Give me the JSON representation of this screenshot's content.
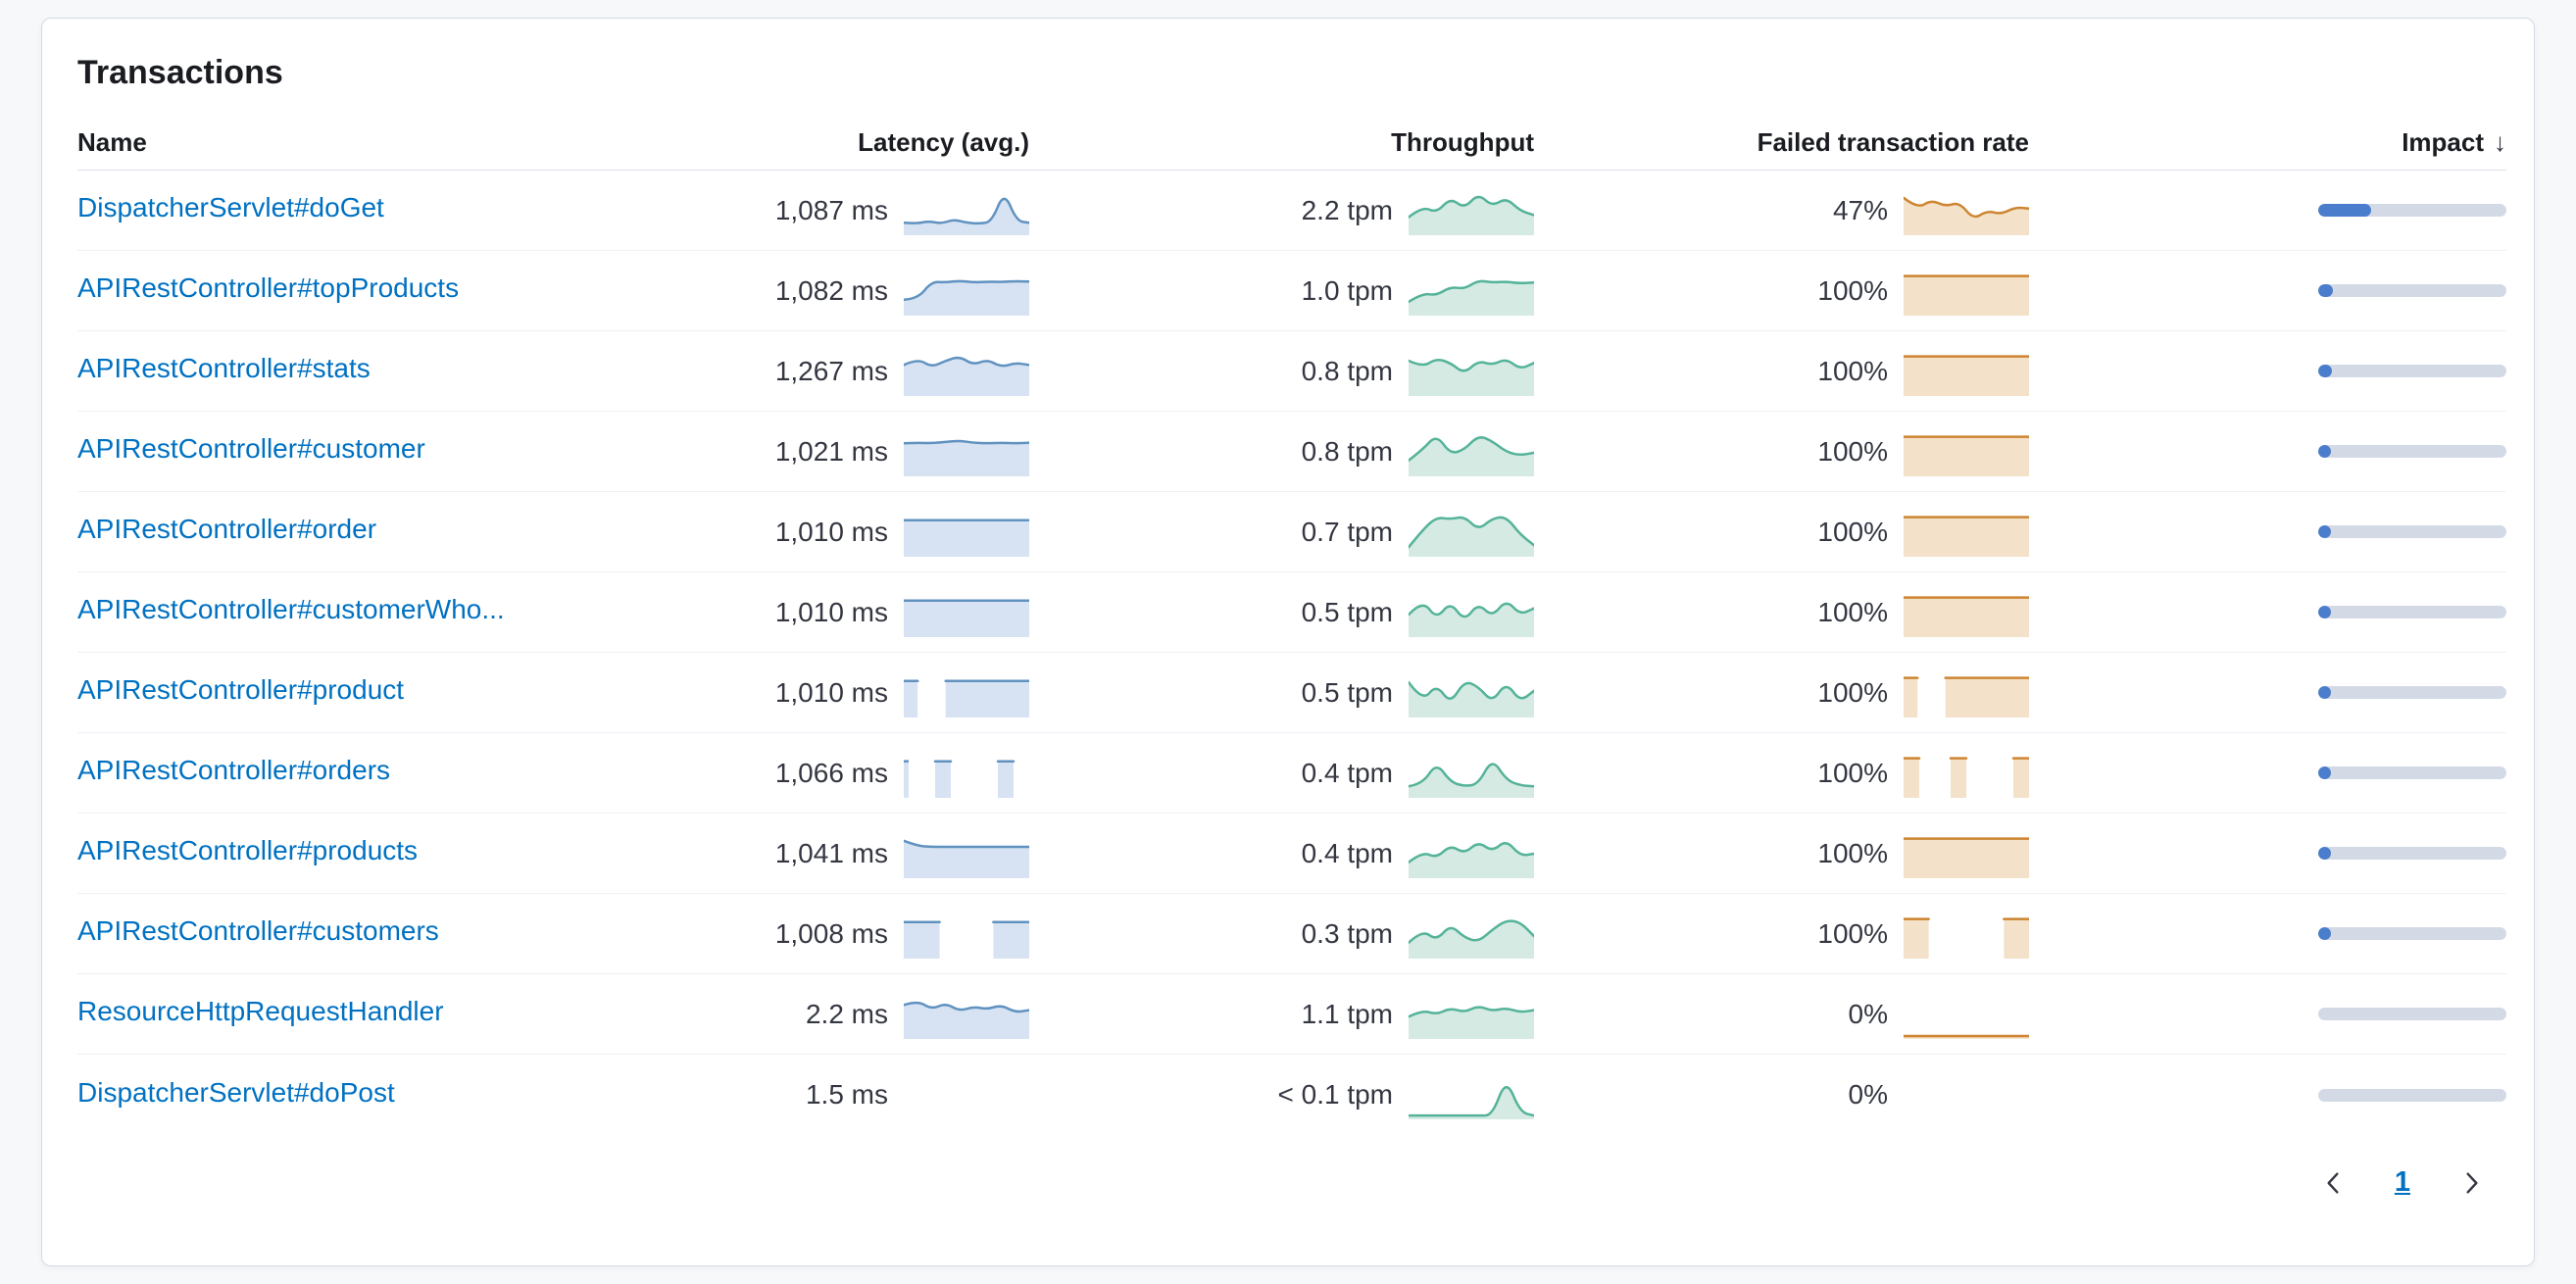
{
  "panel": {
    "title": "Transactions"
  },
  "table": {
    "columns": [
      "Name",
      "Latency (avg.)",
      "Throughput",
      "Failed transaction rate",
      "Impact"
    ],
    "sort_icon": "↓",
    "rows": [
      {
        "name": "DispatcherServlet#doGet",
        "latency": "1,087 ms",
        "throughput": "2.2 tpm",
        "failed_rate": "47%",
        "impact": 0.28,
        "spark_latency": [
          0.22,
          0.2,
          0.26,
          0.2,
          0.3,
          0.22,
          0.2,
          0.24,
          0.95,
          0.26,
          0.22
        ],
        "spark_throughput": [
          0.35,
          0.6,
          0.45,
          0.8,
          0.55,
          0.9,
          0.6,
          0.8,
          0.5,
          0.4
        ],
        "spark_failed": [
          0.8,
          0.55,
          0.75,
          0.6,
          0.7,
          0.3,
          0.5,
          0.42,
          0.58,
          0.55
        ]
      },
      {
        "name": "APIRestController#topProducts",
        "latency": "1,082 ms",
        "throughput": "1.0 tpm",
        "failed_rate": "100%",
        "impact": 0.08,
        "spark_latency": [
          0.3,
          0.32,
          0.72,
          0.7,
          0.74,
          0.7,
          0.72,
          0.71,
          0.73,
          0.72
        ],
        "spark_throughput": [
          0.25,
          0.45,
          0.4,
          0.6,
          0.55,
          0.75,
          0.7,
          0.72,
          0.68,
          0.7
        ],
        "spark_failed": [
          0.85,
          0.85,
          0.85,
          0.85,
          0.85,
          0.85,
          0.85,
          0.85,
          0.85,
          0.85
        ]
      },
      {
        "name": "APIRestController#stats",
        "latency": "1,267 ms",
        "throughput": "0.8 tpm",
        "failed_rate": "100%",
        "impact": 0.075,
        "spark_latency": [
          0.65,
          0.8,
          0.6,
          0.75,
          0.85,
          0.65,
          0.78,
          0.6,
          0.7,
          0.65
        ],
        "spark_throughput": [
          0.75,
          0.6,
          0.8,
          0.7,
          0.45,
          0.75,
          0.65,
          0.8,
          0.55,
          0.7
        ],
        "spark_failed": [
          0.85,
          0.85,
          0.85,
          0.85,
          0.85,
          0.85,
          0.85,
          0.85,
          0.85,
          0.85
        ]
      },
      {
        "name": "APIRestController#customer",
        "latency": "1,021 ms",
        "throughput": "0.8 tpm",
        "failed_rate": "100%",
        "impact": 0.07,
        "spark_latency": [
          0.7,
          0.71,
          0.7,
          0.73,
          0.76,
          0.71,
          0.7,
          0.71,
          0.7,
          0.71
        ],
        "spark_throughput": [
          0.3,
          0.55,
          0.9,
          0.45,
          0.55,
          0.88,
          0.75,
          0.5,
          0.42,
          0.48
        ],
        "spark_failed": [
          0.85,
          0.85,
          0.85,
          0.85,
          0.85,
          0.85,
          0.85,
          0.85,
          0.85,
          0.85
        ]
      },
      {
        "name": "APIRestController#order",
        "latency": "1,010 ms",
        "throughput": "0.7 tpm",
        "failed_rate": "100%",
        "impact": 0.065,
        "spark_latency": [
          0.78,
          0.78,
          0.78,
          0.78,
          0.78,
          0.78,
          0.78,
          0.78,
          0.78,
          0.78
        ],
        "spark_throughput": [
          0.15,
          0.55,
          0.85,
          0.8,
          0.87,
          0.55,
          0.82,
          0.86,
          0.45,
          0.2
        ],
        "spark_failed": [
          0.85,
          0.85,
          0.85,
          0.85,
          0.85,
          0.85,
          0.85,
          0.85,
          0.85,
          0.85
        ]
      },
      {
        "name": "APIRestController#customerWho...",
        "latency": "1,010 ms",
        "throughput": "0.5 tpm",
        "failed_rate": "100%",
        "impact": 0.06,
        "spark_latency": [
          0.78,
          0.78,
          0.78,
          0.78,
          0.78,
          0.78,
          0.78,
          0.78,
          0.78,
          0.78
        ],
        "spark_throughput": [
          0.45,
          0.8,
          0.35,
          0.75,
          0.3,
          0.72,
          0.4,
          0.8,
          0.45,
          0.6
        ],
        "spark_failed": [
          0.85,
          0.85,
          0.85,
          0.85,
          0.85,
          0.85,
          0.85,
          0.85,
          0.85,
          0.85
        ]
      },
      {
        "name": "APIRestController#product",
        "latency": "1,010 ms",
        "throughput": "0.5 tpm",
        "failed_rate": "100%",
        "impact": 0.055,
        "spark_latency": [
          0.78,
          0.78,
          null,
          0.78,
          0.78,
          0.78,
          0.78,
          0.78,
          0.78,
          0.78
        ],
        "spark_throughput": [
          0.75,
          0.3,
          0.7,
          0.25,
          0.78,
          0.65,
          0.28,
          0.75,
          0.3,
          0.55
        ],
        "spark_failed": [
          0.85,
          0.85,
          null,
          0.85,
          0.85,
          0.85,
          0.85,
          0.85,
          0.85,
          0.85
        ]
      },
      {
        "name": "APIRestController#orders",
        "latency": "1,066 ms",
        "throughput": "0.4 tpm",
        "failed_rate": "100%",
        "impact": 0.05,
        "spark_latency": [
          0.78,
          null,
          0.78,
          0.78,
          null,
          null,
          0.78,
          0.78,
          null
        ],
        "spark_throughput": [
          0.2,
          0.25,
          0.75,
          0.3,
          0.2,
          0.25,
          0.85,
          0.35,
          0.22,
          0.2
        ],
        "spark_failed": [
          0.85,
          0.85,
          null,
          0.85,
          0.85,
          null,
          null,
          0.85,
          0.85
        ]
      },
      {
        "name": "APIRestController#products",
        "latency": "1,041 ms",
        "throughput": "0.4 tpm",
        "failed_rate": "100%",
        "impact": 0.05,
        "spark_latency": [
          0.8,
          0.68,
          0.66,
          0.66,
          0.66,
          0.66,
          0.66,
          0.66,
          0.66,
          0.66
        ],
        "spark_throughput": [
          0.3,
          0.55,
          0.4,
          0.7,
          0.5,
          0.78,
          0.55,
          0.82,
          0.45,
          0.5
        ],
        "spark_failed": [
          0.85,
          0.85,
          0.85,
          0.85,
          0.85,
          0.85,
          0.85,
          0.85,
          0.85,
          0.85
        ]
      },
      {
        "name": "APIRestController#customers",
        "latency": "1,008 ms",
        "throughput": "0.3 tpm",
        "failed_rate": "100%",
        "impact": 0.045,
        "spark_latency": [
          0.78,
          0.78,
          0.78,
          null,
          null,
          0.78,
          0.78,
          0.78
        ],
        "spark_throughput": [
          0.3,
          0.6,
          0.35,
          0.72,
          0.42,
          0.32,
          0.6,
          0.82,
          0.78,
          0.45
        ],
        "spark_failed": [
          0.85,
          0.85,
          null,
          null,
          0.85,
          0.85
        ]
      },
      {
        "name": "ResourceHttpRequestHandler",
        "latency": "2.2 ms",
        "throughput": "1.1 tpm",
        "failed_rate": "0%",
        "impact": 0,
        "spark_latency": [
          0.72,
          0.82,
          0.62,
          0.76,
          0.58,
          0.68,
          0.62,
          0.72,
          0.55,
          0.6
        ],
        "spark_throughput": [
          0.45,
          0.6,
          0.5,
          0.65,
          0.55,
          0.7,
          0.58,
          0.65,
          0.55,
          0.6
        ],
        "spark_failed": [
          0,
          0,
          0,
          0,
          0,
          0,
          0,
          0,
          0,
          0
        ]
      },
      {
        "name": "DispatcherServlet#doPost",
        "latency": "1.5 ms",
        "throughput": "< 0.1 tpm",
        "failed_rate": "0%",
        "impact": 0,
        "spark_latency": [],
        "spark_throughput": [
          0.02,
          0.02,
          0.02,
          0.02,
          0.02,
          0.02,
          0.02,
          0.88,
          0.1,
          0.02
        ],
        "spark_failed": []
      }
    ]
  },
  "pagination": {
    "current_page": "1"
  },
  "colors": {
    "link": "#0071c2",
    "latency_stroke": "#6092c0",
    "latency_fill": "#d7e3f2",
    "throughput_stroke": "#54b399",
    "throughput_fill": "#d5eae2",
    "failed_stroke": "#cd8532",
    "failed_fill": "#f4e1c9",
    "impact_fill": "#4a7dcc",
    "impact_track": "#d3dae6"
  }
}
